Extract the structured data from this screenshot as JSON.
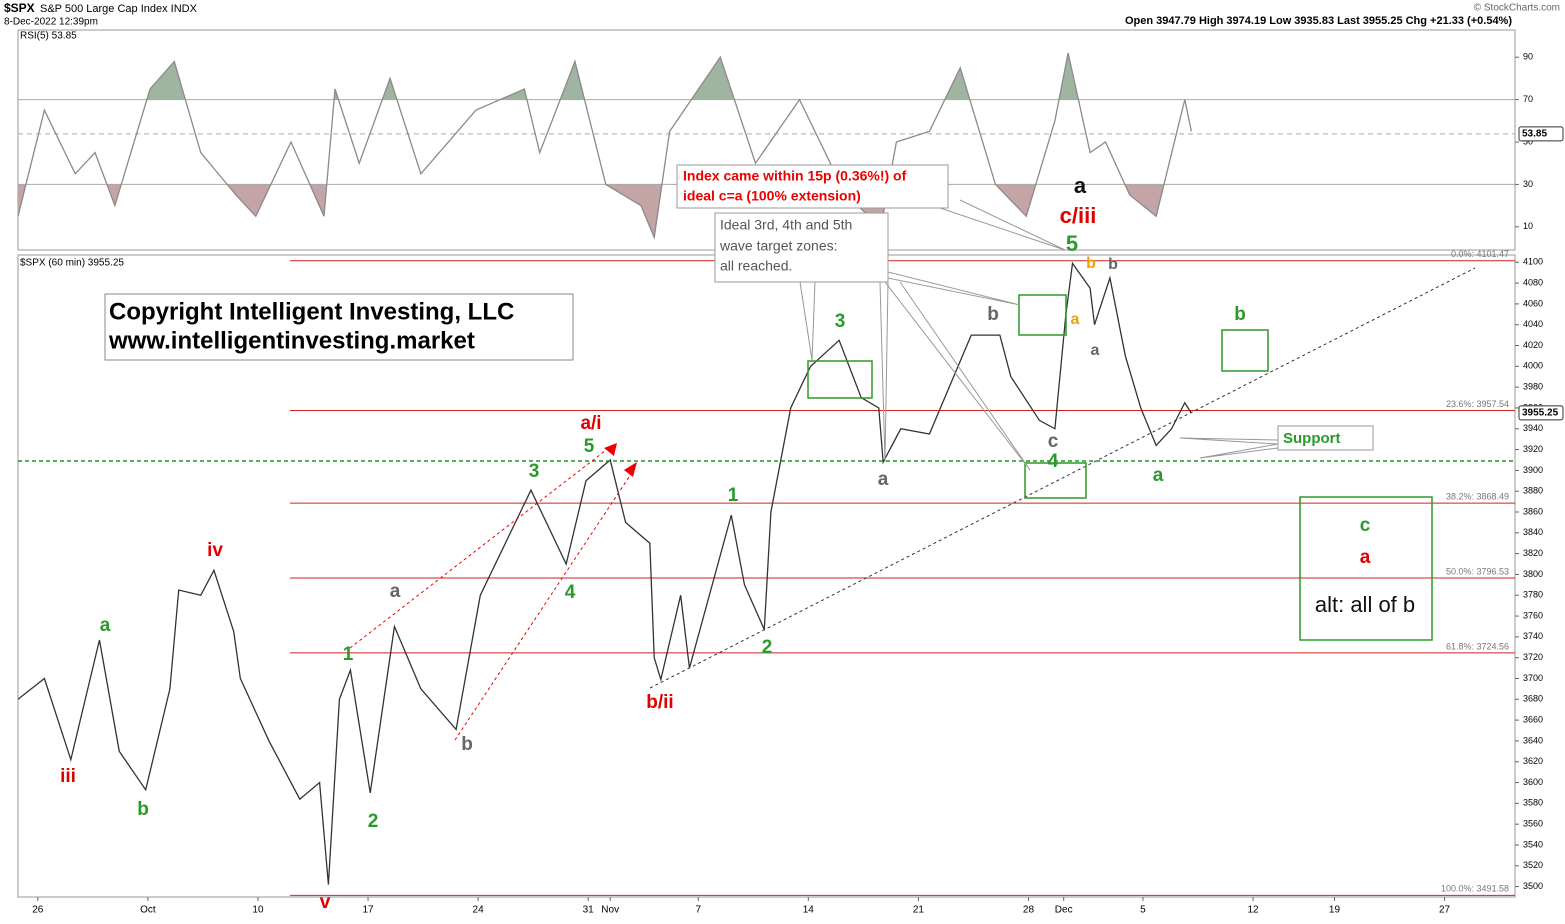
{
  "header": {
    "symbol": "$SPX",
    "name": "S&P 500 Large Cap Index INDX",
    "date": "8-Dec-2022 12:39pm",
    "ohlc": "Open 3947.79 High 3974.19 Low 3935.83 Last 3955.25 Chg +21.33 (+0.54%)",
    "credit": "© StockCharts.com"
  },
  "chart_data": [
    {
      "type": "line",
      "title": "RSI(5) 53.85",
      "color": "#8a8a8a",
      "x": [
        -0.9,
        0.3,
        1.7,
        2.6,
        3.5,
        5.1,
        6.2,
        7.4,
        9,
        9.9,
        11.5,
        13,
        13.5,
        14.6,
        16,
        17.4,
        19.9,
        22.1,
        22.8,
        24.4,
        25.8,
        27.4,
        28,
        28.7,
        31,
        32.6,
        34.6,
        36.7,
        38.3,
        39,
        40.5,
        41.9,
        43.5,
        44.9,
        46.2,
        46.8,
        47.8,
        48.5,
        49.6,
        50.8,
        52.1,
        52.4
      ],
      "values": [
        15,
        65,
        35,
        45,
        20,
        75,
        88,
        45,
        25,
        15,
        50,
        15,
        75,
        40,
        80,
        35,
        65,
        75,
        45,
        88,
        30,
        20,
        5,
        55,
        90,
        40,
        70,
        25,
        10,
        50,
        55,
        85,
        30,
        15,
        60,
        92,
        45,
        50,
        25,
        15,
        70,
        55
      ],
      "xlim": [
        -0.9,
        67.1
      ],
      "ylim": [
        0,
        100
      ],
      "yticks": [
        10,
        30,
        50,
        70,
        90
      ],
      "overbought": 70,
      "oversold": 30,
      "last_value": 53.85
    },
    {
      "type": "line",
      "title": "$SPX (60 min) 3955.25",
      "color": "#333333",
      "x": [
        -0.9,
        0.3,
        1.5,
        2.8,
        3.7,
        4.9,
        6,
        6.4,
        7.4,
        8,
        8.9,
        9.2,
        10.5,
        11.9,
        12.8,
        13.2,
        13.7,
        14.2,
        15.1,
        16.2,
        17.4,
        19,
        20.1,
        22.4,
        24,
        24.9,
        26,
        26.7,
        27.8,
        28,
        28.3,
        29.2,
        29.6,
        31.5,
        32.1,
        33,
        33.3,
        34.2,
        35.1,
        36.4,
        37.4,
        38.2,
        38.4,
        39.2,
        40.5,
        42.4,
        43.7,
        44.2,
        45.5,
        46.2,
        46.7,
        47,
        47.8,
        48,
        48.7,
        49.4,
        50.1,
        50.8,
        51.5,
        52.1,
        52.4
      ],
      "values": [
        3680,
        3700,
        3622,
        3737,
        3630,
        3593,
        3690,
        3785,
        3780,
        3804,
        3745,
        3700,
        3640,
        3584,
        3600,
        3502,
        3680,
        3708,
        3590,
        3750,
        3690,
        3651,
        3780,
        3881,
        3810,
        3890,
        3910,
        3850,
        3830,
        3720,
        3699,
        3780,
        3710,
        3857,
        3790,
        3747,
        3860,
        3960,
        4000,
        4025,
        3970,
        3960,
        3908,
        3940,
        3935,
        4030,
        4030,
        3990,
        3948,
        3940,
        4050,
        4099,
        4075,
        4040,
        4085,
        4010,
        3960,
        3924,
        3940,
        3965,
        3955
      ],
      "xlim": [
        -0.9,
        67.1
      ],
      "xticks": [
        {
          "value": 0,
          "label": "26"
        },
        {
          "value": 5,
          "label": "Oct"
        },
        {
          "value": 10,
          "label": "10"
        },
        {
          "value": 15,
          "label": "17"
        },
        {
          "value": 20,
          "label": "24"
        },
        {
          "value": 25,
          "label": "31"
        },
        {
          "value": 26,
          "label": "Nov"
        },
        {
          "value": 30,
          "label": "7"
        },
        {
          "value": 35,
          "label": "14"
        },
        {
          "value": 40,
          "label": "21"
        },
        {
          "value": 45,
          "label": "28"
        },
        {
          "value": 46.6,
          "label": "Dec"
        },
        {
          "value": 50.2,
          "label": "5"
        },
        {
          "value": 55.2,
          "label": "12"
        },
        {
          "value": 58.9,
          "label": "19"
        },
        {
          "value": 63.9,
          "label": "27"
        }
      ],
      "ylim": [
        3490,
        4107
      ],
      "yticks": [
        3500,
        3520,
        3540,
        3560,
        3580,
        3600,
        3620,
        3640,
        3660,
        3680,
        3700,
        3720,
        3740,
        3760,
        3780,
        3800,
        3820,
        3840,
        3860,
        3880,
        3900,
        3920,
        3940,
        3960,
        3980,
        4000,
        4020,
        4040,
        4060,
        4080,
        4100
      ],
      "last_value": 3955.25,
      "fib_levels": [
        {
          "value": 4101.47,
          "label": "0.0%: 4101.47"
        },
        {
          "value": 3957.54,
          "label": "23.6%: 3957.54"
        },
        {
          "value": 3868.49,
          "label": "38.2%: 3868.49"
        },
        {
          "value": 3796.53,
          "label": "50.0%: 3796.53"
        },
        {
          "value": 3724.56,
          "label": "61.8%: 3724.56"
        },
        {
          "value": 3491.58,
          "label": "100.0%: 3491.58"
        }
      ]
    }
  ],
  "annotations": {
    "copyright": [
      "Copyright Intelligent Investing, LLC",
      "www.intelligentinvesting.market"
    ],
    "callout_red": [
      "Index came within 15p (0.36%!) of",
      "ideal c=a (100% extension)"
    ],
    "callout_gray": [
      "Ideal 3rd, 4th and 5th",
      "wave target zones:",
      "all reached."
    ],
    "support": "Support",
    "alt": "alt: all of b"
  },
  "wave_labels": [
    "iii",
    "b",
    "a",
    "iv",
    "v",
    "1",
    "2",
    "a",
    "b",
    "3",
    "4",
    "5",
    "a/i",
    "b/ii",
    "1",
    "2",
    "3",
    "a",
    "b",
    "c",
    "4",
    "5",
    "c/iii",
    "a",
    "a",
    "b",
    "b",
    "a",
    "a",
    "b",
    "c",
    "a"
  ]
}
